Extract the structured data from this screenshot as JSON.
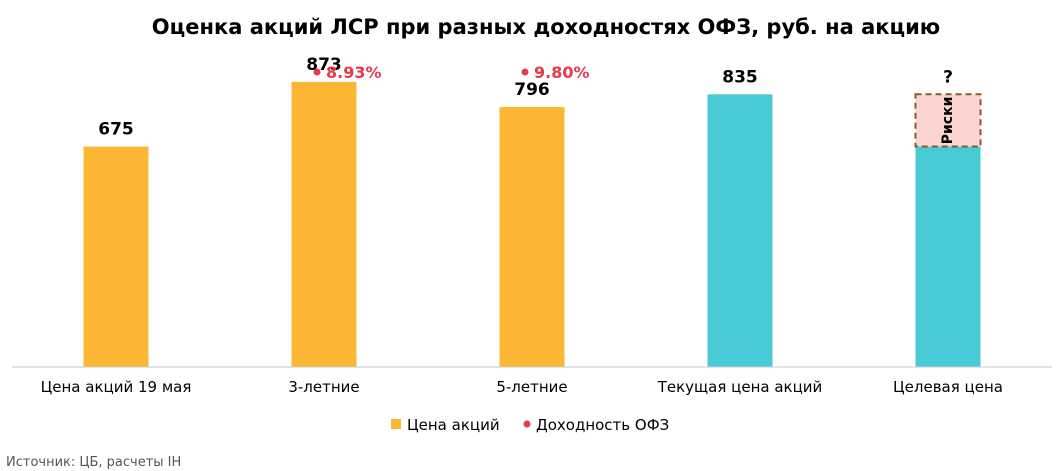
{
  "chart_data": {
    "type": "bar",
    "title": "Оценка акций ЛСР при разных доходностях ОФЗ, руб. на акцию",
    "categories": [
      "Цена акций 19 мая",
      "3-летние",
      "5-летние",
      "Текущая цена акций",
      "Целевая цена"
    ],
    "series": [
      {
        "name": "Цена акций",
        "values": [
          675,
          873,
          796,
          835,
          null
        ],
        "labels": [
          "675",
          "873",
          "796",
          "835",
          "?"
        ],
        "colors": [
          "#fbb733",
          "#fbb733",
          "#fbb733",
          "#48cbd4",
          "#48cbd4"
        ]
      },
      {
        "name": "Доходность ОФЗ",
        "values": [
          null,
          8.93,
          9.8,
          null,
          null
        ],
        "labels": [
          "",
          "8.93%",
          "9.80%",
          "",
          ""
        ],
        "color": "#e8394a"
      }
    ],
    "target_bar": {
      "category": "Целевая цена",
      "base_value": 675,
      "top_value": 835,
      "base_color": "#48cbd4",
      "risk_label": "Риски",
      "risk_fill": "#fcd5d1",
      "risk_border": "#8a5a2b",
      "top_label": "?"
    },
    "ylim": [
      0,
      940
    ],
    "grid": false,
    "legend_position": "bottom"
  },
  "source": "Источник: ЦБ, расчеты IH"
}
